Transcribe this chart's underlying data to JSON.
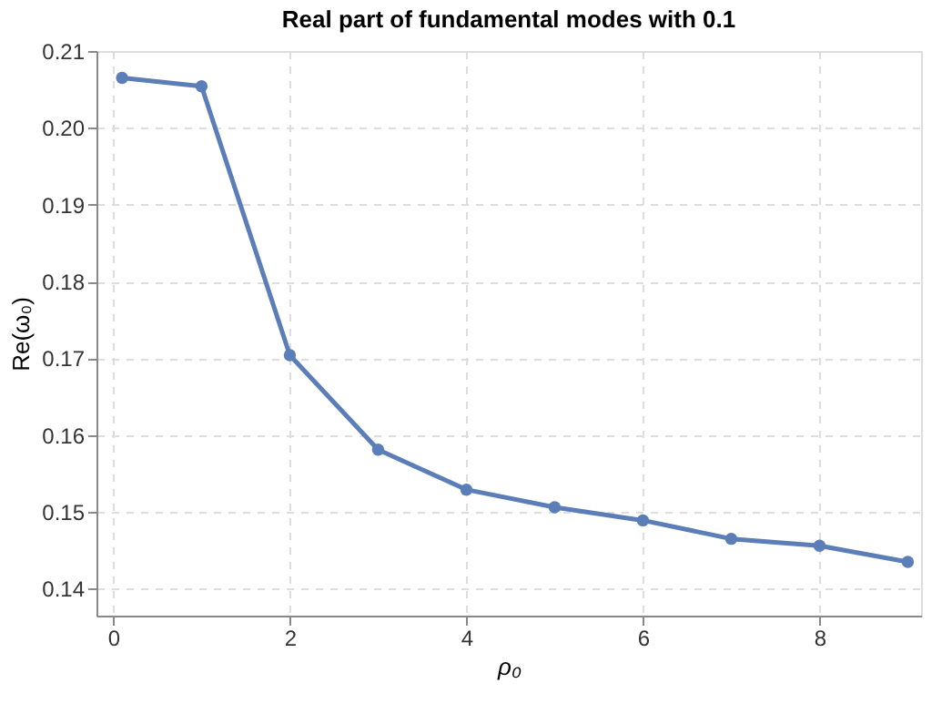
{
  "chart_data": {
    "type": "line",
    "title": "Real part of fundamental modes with 0.1",
    "xlabel": "ρ₀",
    "ylabel": "Re(ω₀)",
    "x": [
      0.1,
      1,
      2,
      3,
      4,
      5,
      6,
      7,
      8,
      9
    ],
    "series": [
      {
        "color": "#5b7db8",
        "values": [
          0.2065,
          0.2054,
          0.1704,
          0.1581,
          0.1529,
          0.1506,
          0.1489,
          0.1465,
          0.1456,
          0.1435
        ]
      }
    ],
    "xlim": [
      -0.19,
      9.15
    ],
    "ylim": [
      0.1365,
      0.21
    ],
    "xticks": [
      0,
      2,
      4,
      6,
      8
    ],
    "yticks": [
      {
        "value": 0.14,
        "label": "0.14"
      },
      {
        "value": 0.15,
        "label": "0.15"
      },
      {
        "value": 0.16,
        "label": "0.16"
      },
      {
        "value": 0.17,
        "label": "0.17"
      },
      {
        "value": 0.18,
        "label": "0.18"
      },
      {
        "value": 0.19,
        "label": "0.19"
      },
      {
        "value": 0.2,
        "label": "0.20"
      },
      {
        "value": 0.21,
        "label": "0.21"
      }
    ],
    "grid": true,
    "marker": "circle",
    "line_style": "solid"
  }
}
